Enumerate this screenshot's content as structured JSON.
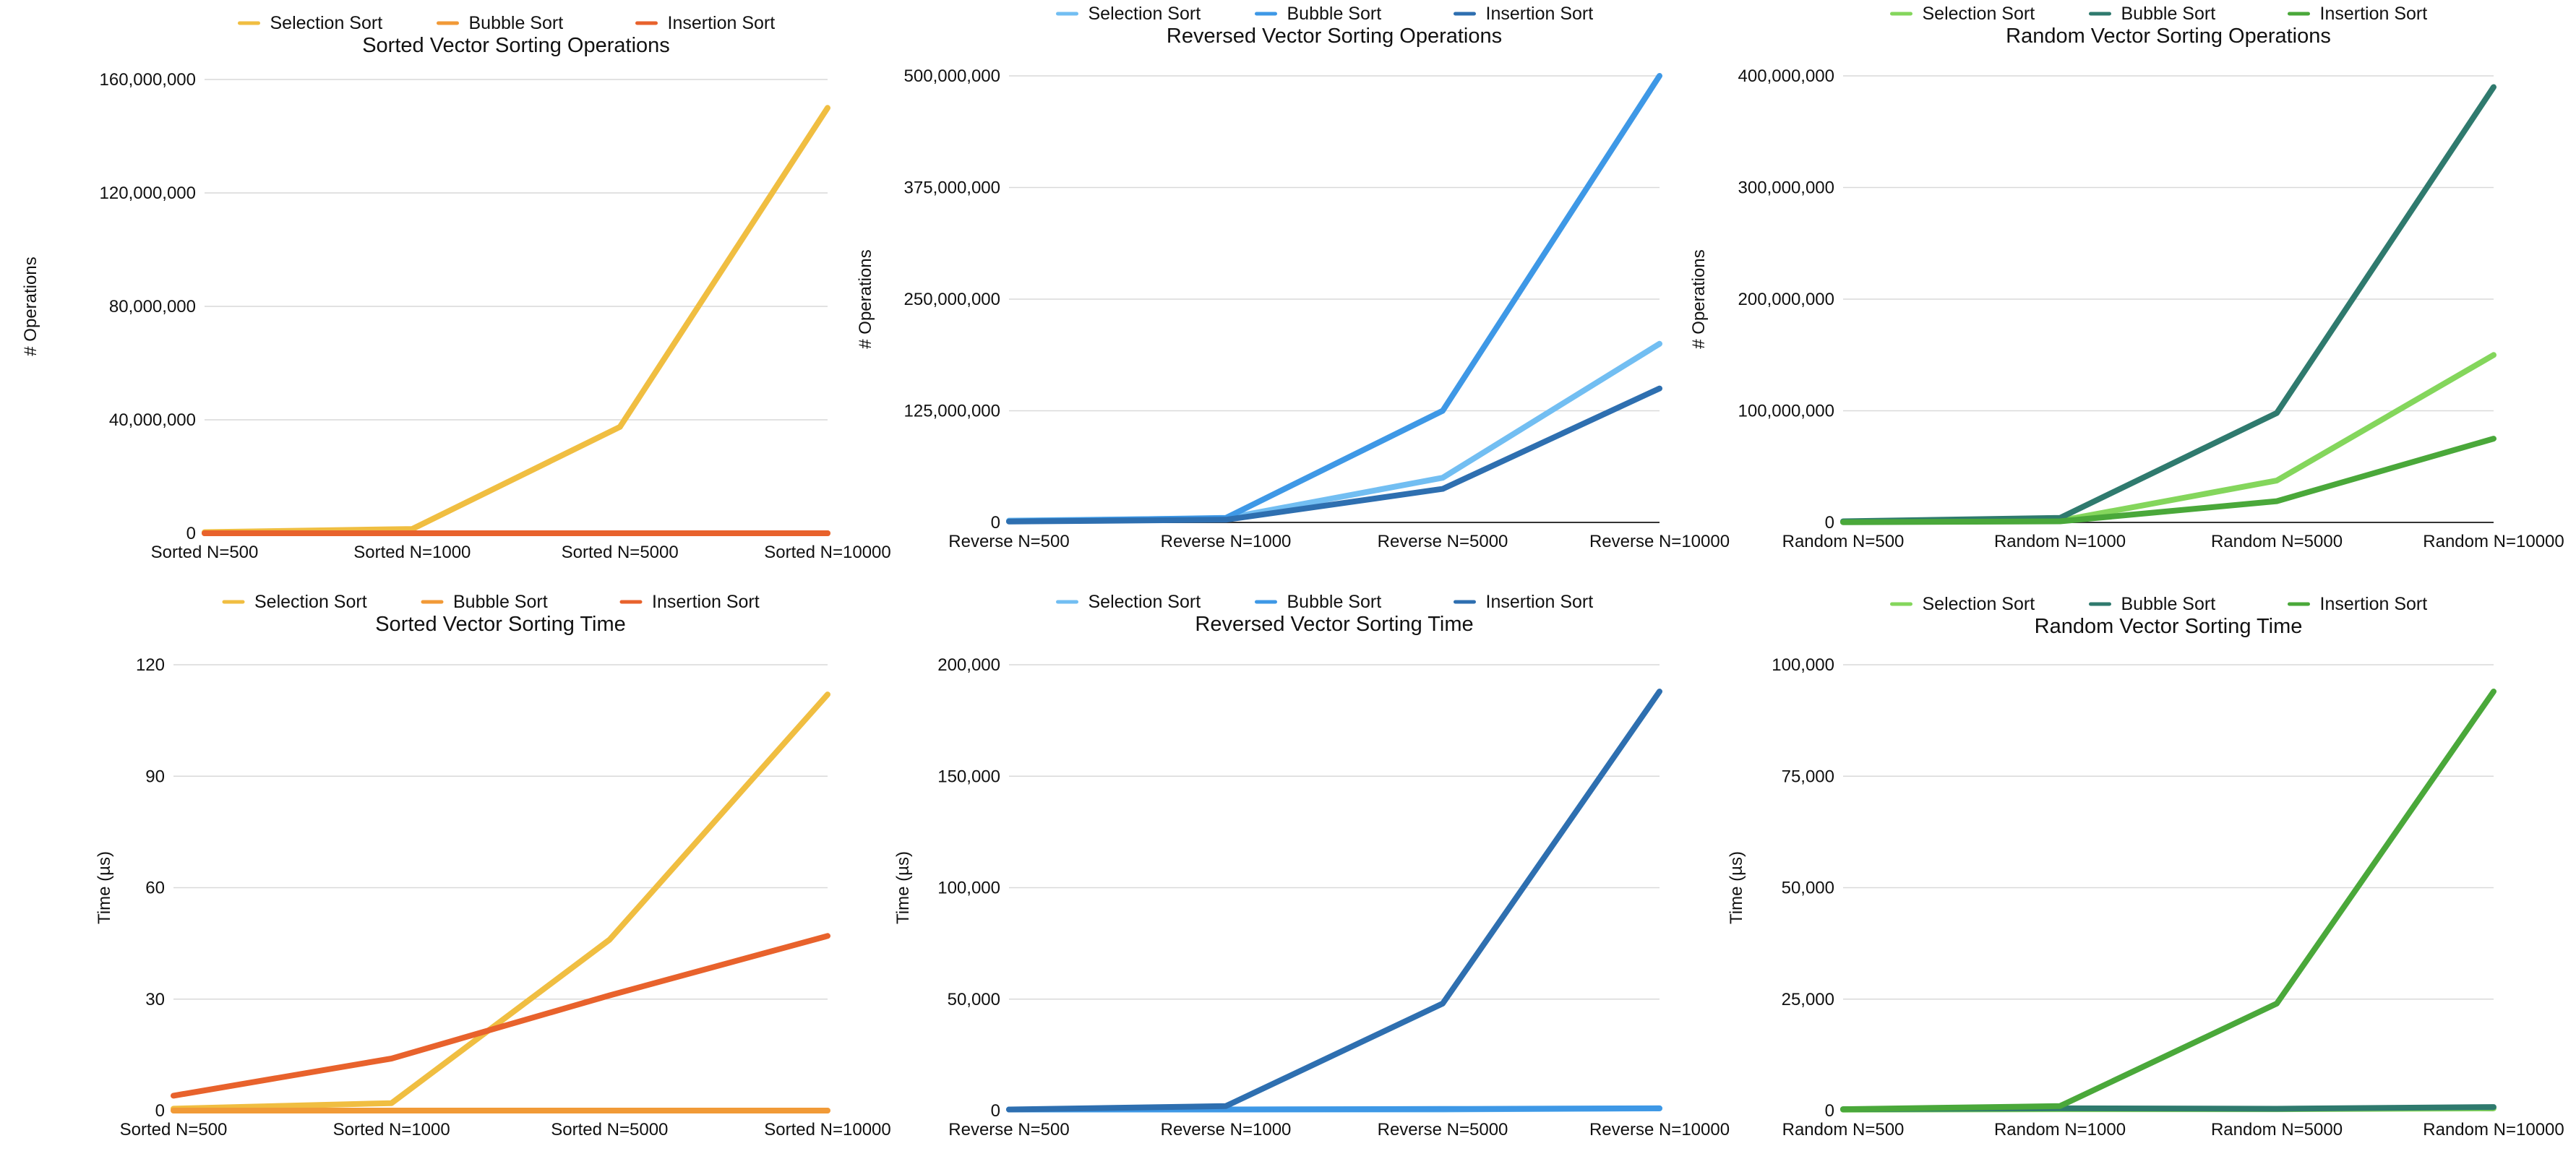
{
  "chart_data": [
    {
      "type": "line",
      "title": "Sorted Vector Sorting Operations",
      "xlabel": "",
      "ylabel": "# Operations",
      "categories": [
        "Sorted N=500",
        "Sorted N=1000",
        "Sorted N=5000",
        "Sorted N=10000"
      ],
      "ylim": [
        0,
        160000000
      ],
      "yticks": [
        0,
        40000000,
        80000000,
        120000000,
        160000000
      ],
      "ytick_labels": [
        "0",
        "40,000,000",
        "80,000,000",
        "120,000,000",
        "160,000,000"
      ],
      "legend_position": "top",
      "grid": true,
      "series": [
        {
          "name": "Selection Sort",
          "color": "#f0be41",
          "values": [
            375000,
            1500000,
            37500000,
            150000000
          ]
        },
        {
          "name": "Bubble Sort",
          "color": "#f19a37",
          "values": [
            500,
            1000,
            5000,
            10000
          ]
        },
        {
          "name": "Insertion Sort",
          "color": "#e8622c",
          "values": [
            500,
            1000,
            5000,
            10000
          ]
        }
      ]
    },
    {
      "type": "line",
      "title": "Reversed Vector Sorting Operations",
      "xlabel": "",
      "ylabel": "# Operations",
      "categories": [
        "Reverse N=500",
        "Reverse N=1000",
        "Reverse N=5000",
        "Reverse N=10000"
      ],
      "ylim": [
        0,
        500000000
      ],
      "yticks": [
        0,
        125000000,
        250000000,
        375000000,
        500000000
      ],
      "ytick_labels": [
        "0",
        "125,000,000",
        "250,000,000",
        "375,000,000",
        "500,000,000"
      ],
      "legend_position": "top",
      "grid": true,
      "series": [
        {
          "name": "Selection Sort",
          "color": "#72bef2",
          "values": [
            2000000,
            4500000,
            50000000,
            200000000
          ]
        },
        {
          "name": "Bubble Sort",
          "color": "#3e98e6",
          "values": [
            1200000,
            5000000,
            125000000,
            500000000
          ]
        },
        {
          "name": "Insertion Sort",
          "color": "#2e6fb0",
          "values": [
            1000000,
            3000000,
            37500000,
            150000000
          ]
        }
      ]
    },
    {
      "type": "line",
      "title": "Random Vector Sorting Operations",
      "xlabel": "",
      "ylabel": "# Operations",
      "categories": [
        "Random N=500",
        "Random N=1000",
        "Random N=5000",
        "Random N=10000"
      ],
      "ylim": [
        0,
        400000000
      ],
      "yticks": [
        0,
        100000000,
        200000000,
        300000000,
        400000000
      ],
      "ytick_labels": [
        "0",
        "100,000,000",
        "200,000,000",
        "300,000,000",
        "400,000,000"
      ],
      "legend_position": "top",
      "grid": true,
      "series": [
        {
          "name": "Selection Sort",
          "color": "#84d65c",
          "values": [
            375000,
            1500000,
            37500000,
            150000000
          ]
        },
        {
          "name": "Bubble Sort",
          "color": "#2f7a6e",
          "values": [
            1000000,
            4000000,
            98000000,
            390000000
          ]
        },
        {
          "name": "Insertion Sort",
          "color": "#4aa83a",
          "values": [
            200000,
            1000000,
            19000000,
            75000000
          ]
        }
      ]
    },
    {
      "type": "line",
      "title": "Sorted Vector Sorting Time",
      "xlabel": "",
      "ylabel": "Time (µs)",
      "categories": [
        "Sorted N=500",
        "Sorted N=1000",
        "Sorted N=5000",
        "Sorted N=10000"
      ],
      "ylim": [
        0,
        120
      ],
      "yticks": [
        0,
        30,
        60,
        90,
        120
      ],
      "ytick_labels": [
        "0",
        "30",
        "60",
        "90",
        "120"
      ],
      "legend_position": "top",
      "grid": true,
      "series": [
        {
          "name": "Selection Sort",
          "color": "#f0be41",
          "values": [
            0.5,
            2,
            46,
            112
          ]
        },
        {
          "name": "Bubble Sort",
          "color": "#f19a37",
          "values": [
            0,
            0,
            0,
            0
          ]
        },
        {
          "name": "Insertion Sort",
          "color": "#e8622c",
          "values": [
            4,
            14,
            31,
            47
          ]
        }
      ]
    },
    {
      "type": "line",
      "title": "Reversed Vector Sorting Time",
      "xlabel": "",
      "ylabel": "Time (µs)",
      "categories": [
        "Reverse N=500",
        "Reverse N=1000",
        "Reverse N=5000",
        "Reverse N=10000"
      ],
      "ylim": [
        0,
        200000
      ],
      "yticks": [
        0,
        50000,
        100000,
        150000,
        200000
      ],
      "ytick_labels": [
        "0",
        "50,000",
        "100,000",
        "150,000",
        "200,000"
      ],
      "legend_position": "top",
      "grid": true,
      "series": [
        {
          "name": "Selection Sort",
          "color": "#72bef2",
          "values": [
            500,
            500,
            500,
            1000
          ]
        },
        {
          "name": "Bubble Sort",
          "color": "#3e98e6",
          "values": [
            500,
            500,
            700,
            1000
          ]
        },
        {
          "name": "Insertion Sort",
          "color": "#2e6fb0",
          "values": [
            500,
            2000,
            48000,
            188000
          ]
        }
      ]
    },
    {
      "type": "line",
      "title": "Random Vector Sorting Time",
      "xlabel": "",
      "ylabel": "Time (µs)",
      "categories": [
        "Random N=500",
        "Random N=1000",
        "Random N=5000",
        "Random N=10000"
      ],
      "ylim": [
        0,
        100000
      ],
      "yticks": [
        0,
        25000,
        50000,
        75000,
        100000
      ],
      "ytick_labels": [
        "0",
        "25,000",
        "50,000",
        "75,000",
        "100,000"
      ],
      "legend_position": "top",
      "grid": true,
      "series": [
        {
          "name": "Selection Sort",
          "color": "#84d65c",
          "values": [
            200,
            300,
            300,
            500
          ]
        },
        {
          "name": "Bubble Sort",
          "color": "#2f7a6e",
          "values": [
            300,
            500,
            400,
            800
          ]
        },
        {
          "name": "Insertion Sort",
          "color": "#4aa83a",
          "values": [
            300,
            1000,
            24000,
            94000
          ]
        }
      ]
    }
  ]
}
